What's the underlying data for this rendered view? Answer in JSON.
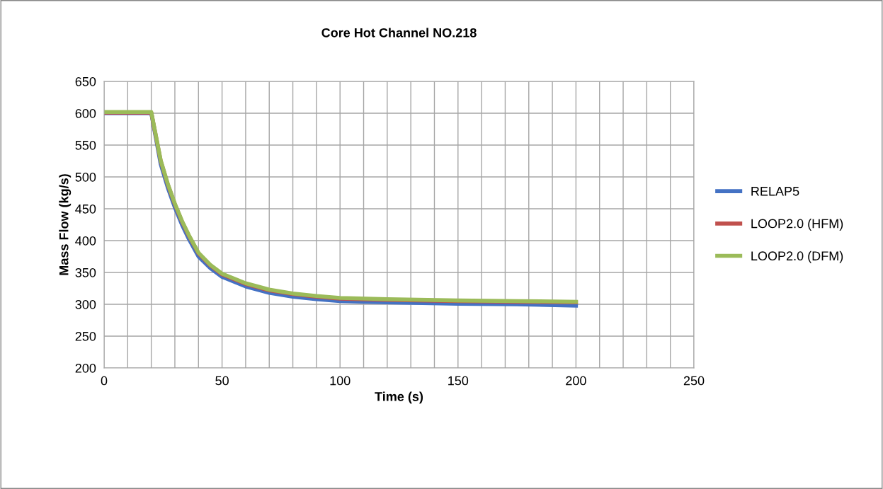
{
  "chart_data": {
    "type": "line",
    "title": "Core Hot Channel NO.218",
    "xlabel": "Time (s)",
    "ylabel": "Mass Flow (kg/s)",
    "xlim": [
      0,
      250
    ],
    "xticks": [
      0,
      {
        "value": 10,
        "label": null
      },
      {
        "value": 20,
        "label": null
      },
      {
        "value": 30,
        "label": null
      },
      {
        "value": 40,
        "label": null
      },
      50,
      {
        "value": 60,
        "label": null
      },
      {
        "value": 70,
        "label": null
      },
      {
        "value": 80,
        "label": null
      },
      {
        "value": 90,
        "label": null
      },
      100,
      {
        "value": 110,
        "label": null
      },
      {
        "value": 120,
        "label": null
      },
      {
        "value": 130,
        "label": null
      },
      {
        "value": 140,
        "label": null
      },
      150,
      {
        "value": 160,
        "label": null
      },
      {
        "value": 170,
        "label": null
      },
      {
        "value": 180,
        "label": null
      },
      {
        "value": 190,
        "label": null
      },
      200,
      {
        "value": 210,
        "label": null
      },
      {
        "value": 220,
        "label": null
      },
      {
        "value": 230,
        "label": null
      },
      {
        "value": 240,
        "label": null
      },
      250
    ],
    "ylim": [
      200,
      650
    ],
    "yticks": [
      200,
      250,
      300,
      350,
      400,
      450,
      500,
      550,
      600,
      650
    ],
    "grid": true,
    "legend": "right",
    "marker": "none",
    "line_style": "solid",
    "x": [
      0,
      20,
      22,
      24,
      27,
      30,
      33,
      36,
      40,
      45,
      50,
      60,
      70,
      80,
      90,
      100,
      120,
      150,
      175,
      200
    ],
    "series": [
      {
        "name": "RELAP5",
        "color": "#4472c4",
        "values": [
          600,
          600,
          560,
          520,
          483,
          452,
          425,
          402,
          375,
          357,
          343,
          328,
          318,
          312,
          308,
          305,
          303,
          301,
          300,
          298
        ]
      },
      {
        "name": "LOOP2.0 (HFM)",
        "color": "#c0504d",
        "values": [
          601,
          601,
          563,
          525,
          488,
          457,
          430,
          407,
          380,
          361,
          347,
          332,
          322,
          316,
          312,
          309,
          307,
          305,
          304,
          303
        ]
      },
      {
        "name": "LOOP2.0 (DFM)",
        "color": "#9bbb59",
        "values": [
          602,
          602,
          564,
          526,
          489,
          458,
          431,
          408,
          381,
          362,
          348,
          333,
          323,
          317,
          313,
          310,
          308,
          306,
          305,
          304
        ]
      }
    ]
  }
}
